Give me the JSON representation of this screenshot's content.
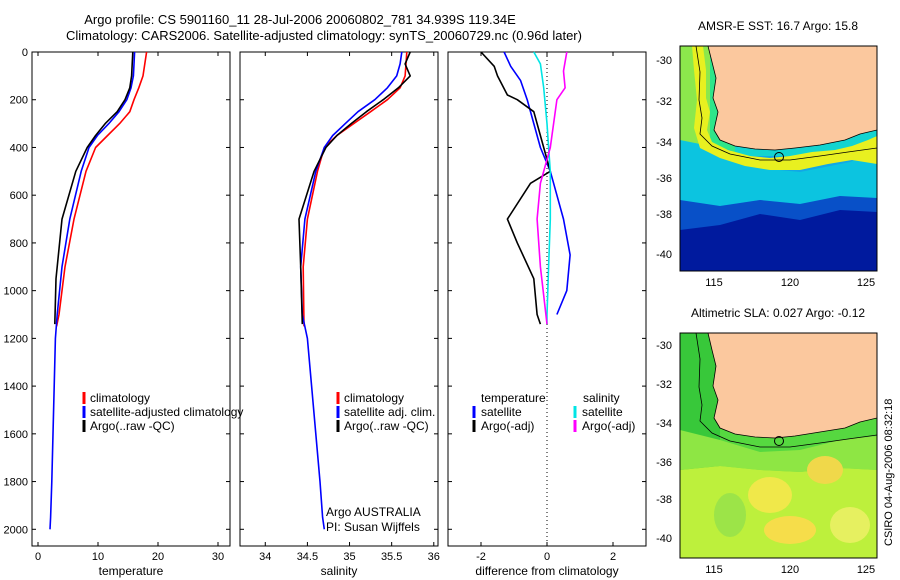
{
  "title": {
    "line1": "Argo profile: CS 5901160_11 28-Jul-2006 20060802_781 34.939S 119.34E",
    "line2": "Climatology: CARS2006. Satellite-adjusted climatology: synTS_20060729.nc (0.96d later)"
  },
  "colors": {
    "climatology": "#ff0000",
    "satellite": "#0000ff",
    "argo": "#000000",
    "sal_satellite": "#00e5e5",
    "sal_argo": "#ff00ff",
    "land": "#fbc89e"
  },
  "chart_data": [
    {
      "type": "line",
      "id": "temperature",
      "xlabel": "temperature",
      "ylabel": "",
      "xlim": [
        -1,
        32
      ],
      "ylim": [
        2070,
        0
      ],
      "xticks": [
        0,
        10,
        20,
        30
      ],
      "yticks": [
        0,
        200,
        400,
        600,
        800,
        1000,
        1200,
        1400,
        1600,
        1800,
        2000
      ],
      "legend": [
        "climatology",
        "satellite-adjusted climatology",
        "Argo(..raw -QC)"
      ],
      "series": [
        {
          "name": "climatology",
          "color": "#ff0000",
          "x": [
            18.1,
            17.8,
            17.5,
            16.8,
            16.0,
            15.3,
            13.6,
            11.6,
            9.6,
            8.0,
            6.0,
            4.5,
            3.5,
            3.1
          ],
          "y": [
            0,
            50,
            100,
            150,
            200,
            250,
            300,
            350,
            400,
            500,
            700,
            900,
            1100,
            1150
          ]
        },
        {
          "name": "satellite",
          "color": "#0000ff",
          "x": [
            16.1,
            16.0,
            15.9,
            15.5,
            14.8,
            13.5,
            11.8,
            9.9,
            8.5,
            7.2,
            5.3,
            4.0,
            3.2,
            2.9,
            2.7,
            2.5,
            2.3,
            2.1,
            2.0
          ],
          "y": [
            0,
            50,
            100,
            150,
            200,
            250,
            300,
            350,
            400,
            500,
            700,
            900,
            1100,
            1200,
            1400,
            1600,
            1800,
            1950,
            2000
          ]
        },
        {
          "name": "Argo(..raw -QC)",
          "color": "#000000",
          "x": [
            15.8,
            15.7,
            15.6,
            15.3,
            14.5,
            13.2,
            11.2,
            9.6,
            8.2,
            6.3,
            4.0,
            3.0,
            2.8
          ],
          "y": [
            0,
            50,
            100,
            150,
            200,
            250,
            300,
            350,
            400,
            500,
            700,
            950,
            1140
          ]
        }
      ]
    },
    {
      "type": "line",
      "id": "salinity",
      "xlabel": "salinity",
      "ylabel": "",
      "xlim": [
        33.7,
        36.05
      ],
      "ylim": [
        2070,
        0
      ],
      "xticks": [
        34,
        34.5,
        35,
        35.5,
        36
      ],
      "xticklabels": [
        "34",
        "34.5",
        "35",
        "35.5",
        "36"
      ],
      "legend": [
        "climatology",
        "satellite adj. clim.",
        "Argo(..raw -QC)"
      ],
      "annotation": [
        "Argo AUSTRALIA",
        "PI: Susan Wijffels"
      ],
      "series": [
        {
          "name": "climatology",
          "color": "#ff0000",
          "x": [
            35.68,
            35.67,
            35.66,
            35.6,
            35.45,
            35.25,
            35.05,
            34.85,
            34.7,
            34.62,
            34.5,
            34.45,
            34.46
          ],
          "y": [
            0,
            50,
            100,
            150,
            200,
            250,
            300,
            350,
            400,
            500,
            700,
            900,
            1150
          ]
        },
        {
          "name": "satellite",
          "color": "#0000ff",
          "x": [
            35.62,
            35.6,
            35.56,
            35.45,
            35.3,
            35.1,
            34.95,
            34.8,
            34.7,
            34.6,
            34.47,
            34.42,
            34.44,
            34.5,
            34.55,
            34.6,
            34.65,
            34.68,
            34.7
          ],
          "y": [
            0,
            50,
            100,
            150,
            200,
            250,
            300,
            350,
            400,
            500,
            700,
            900,
            1100,
            1200,
            1400,
            1600,
            1800,
            1950,
            2000
          ]
        },
        {
          "name": "Argo(..raw -QC)",
          "color": "#000000",
          "x": [
            35.72,
            35.66,
            35.72,
            35.58,
            35.4,
            35.2,
            35.02,
            34.85,
            34.72,
            34.58,
            34.4,
            34.42,
            34.44
          ],
          "y": [
            0,
            50,
            100,
            150,
            200,
            250,
            300,
            350,
            400,
            500,
            700,
            900,
            1140
          ]
        }
      ]
    },
    {
      "type": "line",
      "id": "difference",
      "xlabel": "difference from climatology",
      "ylabel": "",
      "xlim": [
        -3,
        3
      ],
      "ylim": [
        2070,
        0
      ],
      "xticks": [
        -2,
        0,
        2
      ],
      "zero_line": true,
      "legend_left_title": "temperature",
      "legend_right_title": "salinity",
      "legend_left": [
        "satellite",
        "Argo(-adj)"
      ],
      "legend_right": [
        "satellite",
        "Argo(-adj)"
      ],
      "series": [
        {
          "name": "temperature satellite",
          "color": "#0000ff",
          "x": [
            -1.3,
            -1.1,
            -0.8,
            -0.6,
            -0.4,
            -0.2,
            0.1,
            0.3,
            0.5,
            0.7,
            0.6,
            0.3
          ],
          "y": [
            0,
            60,
            120,
            200,
            300,
            400,
            500,
            600,
            700,
            850,
            1000,
            1100
          ]
        },
        {
          "name": "temperature Argo(-adj)",
          "color": "#000000",
          "x": [
            -2.0,
            -1.6,
            -1.5,
            -1.2,
            -0.9,
            -0.4,
            -0.1,
            0.1,
            -0.5,
            -1.2,
            -0.9,
            -0.4,
            -0.3,
            -0.2
          ],
          "y": [
            0,
            60,
            100,
            180,
            200,
            250,
            400,
            500,
            550,
            700,
            800,
            950,
            1100,
            1140
          ]
        },
        {
          "name": "salinity satellite",
          "color": "#00e5e5",
          "x": [
            -0.4,
            -0.2,
            -0.1,
            0.0,
            0.05,
            0.1,
            0.1,
            0.05,
            0.0,
            0.0
          ],
          "y": [
            0,
            50,
            150,
            300,
            400,
            500,
            700,
            900,
            1100,
            1140
          ]
        },
        {
          "name": "salinity Argo(-adj)",
          "color": "#ff00ff",
          "x": [
            0.6,
            0.5,
            0.55,
            0.3,
            0.2,
            0.1,
            -0.2,
            -0.3,
            -0.2,
            0.0
          ],
          "y": [
            0,
            80,
            150,
            200,
            300,
            400,
            550,
            700,
            900,
            1140
          ]
        }
      ]
    }
  ],
  "maps": [
    {
      "id": "sst",
      "title": "AMSR-E SST: 16.7 Argo: 15.8",
      "xticks": [
        "115",
        "120",
        "125"
      ],
      "yticks": [
        "-30",
        "-32",
        "-34",
        "-36",
        "-38",
        "-40"
      ]
    },
    {
      "id": "sla",
      "title": "Altimetric SLA: 0.027 Argo: -0.12",
      "xticks": [
        "115",
        "120",
        "125"
      ],
      "yticks": [
        "-30",
        "-32",
        "-34",
        "-36",
        "-38",
        "-40"
      ]
    }
  ],
  "stamp": "CSIRO 04-Aug-2006 08:32:18"
}
